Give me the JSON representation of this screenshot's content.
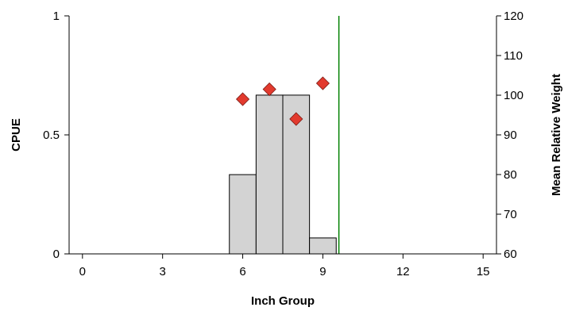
{
  "chart_data": {
    "type": "bar",
    "xlabel": "Inch Group",
    "ylabel": "CPUE",
    "y2label": "Mean Relative Weight",
    "xlim": [
      -0.5,
      15.5
    ],
    "ylim": [
      0,
      1
    ],
    "y2lim": [
      60,
      120
    ],
    "xticks": [
      0,
      3,
      6,
      9,
      12,
      15
    ],
    "yticks": [
      0,
      0.5,
      1
    ],
    "ytick_labels": [
      "0",
      "0.5",
      "1"
    ],
    "y2ticks": [
      60,
      70,
      80,
      90,
      100,
      110,
      120
    ],
    "bars": {
      "series": [
        {
          "values": [
            {
              "x": 6,
              "y": 0.333
            },
            {
              "x": 7,
              "y": 0.667
            },
            {
              "x": 8,
              "y": 0.667
            },
            {
              "x": 9,
              "y": 0.067
            }
          ]
        }
      ],
      "color": "#d3d3d3",
      "edgecolor": "#000000"
    },
    "points": {
      "axis": "right",
      "marker": "diamond",
      "color": "#e23a2e",
      "values": [
        {
          "x": 6,
          "y": 99
        },
        {
          "x": 7,
          "y": 101.5
        },
        {
          "x": 8,
          "y": 94
        },
        {
          "x": 9,
          "y": 103
        }
      ]
    },
    "reference_line": {
      "x": 9.6,
      "color": "#008000"
    },
    "grid": false,
    "legend": "none"
  }
}
